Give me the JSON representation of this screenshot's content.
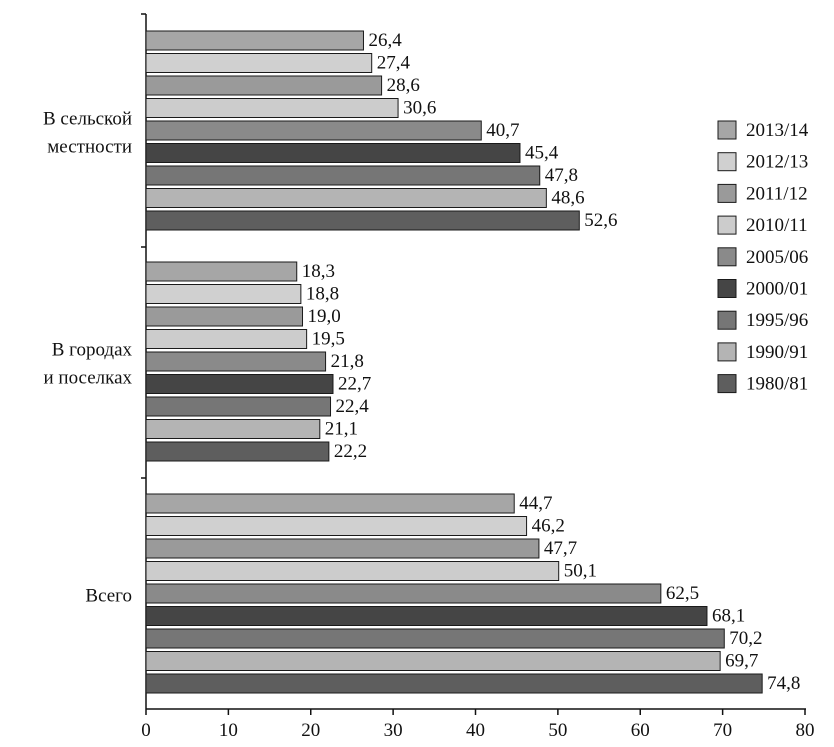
{
  "chart_data": {
    "type": "bar",
    "orientation": "horizontal",
    "categories": [
      "В сельской местности",
      "В городах и поселках",
      "Всего"
    ],
    "category_label_lines": [
      [
        "В сельской",
        "местности"
      ],
      [
        "В городах",
        "и поселках"
      ],
      [
        "Всего"
      ]
    ],
    "series": [
      {
        "name": "2013/14",
        "color": "#a6a6a6",
        "values": [
          26.4,
          18.3,
          44.7
        ],
        "labels": [
          "26,4",
          "18,3",
          "44,7"
        ]
      },
      {
        "name": "2012/13",
        "color": "#d0d0d0",
        "values": [
          27.4,
          18.8,
          46.2
        ],
        "labels": [
          "27,4",
          "18,8",
          "46,2"
        ]
      },
      {
        "name": "2011/12",
        "color": "#9a9a9a",
        "values": [
          28.6,
          19.0,
          47.7
        ],
        "labels": [
          "28,6",
          "19,0",
          "47,7"
        ]
      },
      {
        "name": "2010/11",
        "color": "#cccccc",
        "values": [
          30.6,
          19.5,
          50.1
        ],
        "labels": [
          "30,6",
          "19,5",
          "50,1"
        ]
      },
      {
        "name": "2005/06",
        "color": "#8a8a8a",
        "values": [
          40.7,
          21.8,
          62.5
        ],
        "labels": [
          "40,7",
          "21,8",
          "62,5"
        ]
      },
      {
        "name": "2000/01",
        "color": "#454545",
        "values": [
          45.4,
          22.7,
          68.1
        ],
        "labels": [
          "45,4",
          "22,7",
          "68,1"
        ]
      },
      {
        "name": "1995/96",
        "color": "#767676",
        "values": [
          47.8,
          22.4,
          70.2
        ],
        "labels": [
          "47,8",
          "22,4",
          "70,2"
        ]
      },
      {
        "name": "1990/91",
        "color": "#b4b4b4",
        "values": [
          48.6,
          21.1,
          69.7
        ],
        "labels": [
          "48,6",
          "21,1",
          "69,7"
        ]
      },
      {
        "name": "1980/81",
        "color": "#5e5e5e",
        "values": [
          52.6,
          22.2,
          74.8
        ],
        "labels": [
          "52,6",
          "22,2",
          "74,8"
        ]
      }
    ],
    "xlim": [
      0,
      80
    ],
    "xticks": [
      0,
      10,
      20,
      30,
      40,
      50,
      60,
      70,
      80
    ],
    "xlabel": "",
    "ylabel": "",
    "title": "",
    "grid": false,
    "legend_position": "right",
    "legend_order": [
      "2013/14",
      "2012/13",
      "2011/12",
      "2010/11",
      "2005/06",
      "2000/01",
      "1995/96",
      "1990/91",
      "1980/81"
    ]
  }
}
